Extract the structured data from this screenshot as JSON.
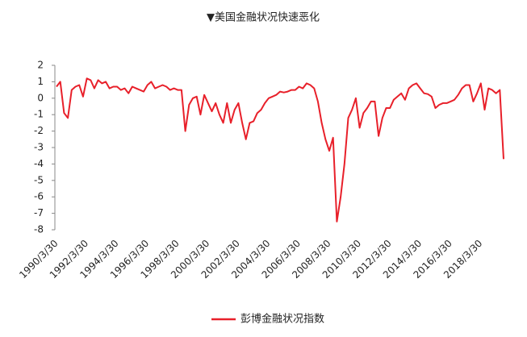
{
  "chart_data": {
    "type": "line",
    "title": "▼美国金融状况快速恶化",
    "categories": [
      "1990/3/30",
      null,
      null,
      null,
      null,
      null,
      null,
      null,
      "1992/3/30",
      null,
      null,
      null,
      null,
      null,
      null,
      null,
      "1994/3/30",
      null,
      null,
      null,
      null,
      null,
      null,
      null,
      "1996/3/30",
      null,
      null,
      null,
      null,
      null,
      null,
      null,
      "1998/3/30",
      null,
      null,
      null,
      null,
      null,
      null,
      null,
      "2000/3/30",
      null,
      null,
      null,
      null,
      null,
      null,
      null,
      "2002/3/30",
      null,
      null,
      null,
      null,
      null,
      null,
      null,
      "2004/3/30",
      null,
      null,
      null,
      null,
      null,
      null,
      null,
      "2006/3/30",
      null,
      null,
      null,
      null,
      null,
      null,
      null,
      "2008/3/30",
      null,
      null,
      null,
      null,
      null,
      null,
      null,
      "2010/3/30",
      null,
      null,
      null,
      null,
      null,
      null,
      null,
      "2012/3/30",
      null,
      null,
      null,
      null,
      null,
      null,
      null,
      "2014/3/30",
      null,
      null,
      null,
      null,
      null,
      null,
      null,
      "2016/3/30",
      null,
      null,
      null,
      null,
      null,
      null,
      null,
      "2018/3/30",
      null,
      null,
      null,
      null,
      null,
      null
    ],
    "series": [
      {
        "name": "彭博金融状况指数",
        "color": "#e8202a",
        "values": [
          0.7,
          1.0,
          -0.9,
          -1.2,
          0.5,
          0.7,
          0.8,
          0.1,
          1.2,
          1.1,
          0.6,
          1.1,
          0.9,
          1.0,
          0.6,
          0.7,
          0.7,
          0.5,
          0.6,
          0.3,
          0.7,
          0.6,
          0.5,
          0.4,
          0.8,
          1.0,
          0.6,
          0.7,
          0.8,
          0.7,
          0.5,
          0.6,
          0.5,
          0.5,
          -2.0,
          -0.4,
          0.0,
          0.1,
          -1.0,
          0.2,
          -0.3,
          -0.8,
          -0.3,
          -1.0,
          -1.5,
          -0.3,
          -1.5,
          -0.7,
          -0.3,
          -1.5,
          -2.5,
          -1.5,
          -1.4,
          -0.9,
          -0.7,
          -0.3,
          0.0,
          0.1,
          0.2,
          0.4,
          0.35,
          0.4,
          0.5,
          0.5,
          0.7,
          0.6,
          0.9,
          0.8,
          0.6,
          -0.2,
          -1.5,
          -2.5,
          -3.2,
          -2.4,
          -7.5,
          -6.0,
          -4.0,
          -1.2,
          -0.7,
          0.0,
          -1.8,
          -0.9,
          -0.6,
          -0.2,
          -0.2,
          -2.3,
          -1.2,
          -0.6,
          -0.6,
          -0.1,
          0.1,
          0.3,
          -0.1,
          0.6,
          0.8,
          0.9,
          0.6,
          0.3,
          0.25,
          0.1,
          -0.6,
          -0.4,
          -0.3,
          -0.3,
          -0.2,
          -0.1,
          0.2,
          0.6,
          0.8,
          0.8,
          -0.2,
          0.3,
          0.9,
          -0.7,
          0.6,
          0.5,
          0.3,
          0.5,
          -3.7
        ]
      }
    ],
    "ylim": [
      -8,
      2
    ],
    "yticks": [
      -8,
      -7,
      -6,
      -5,
      -4,
      -3,
      -2,
      -1,
      0,
      1,
      2
    ]
  }
}
